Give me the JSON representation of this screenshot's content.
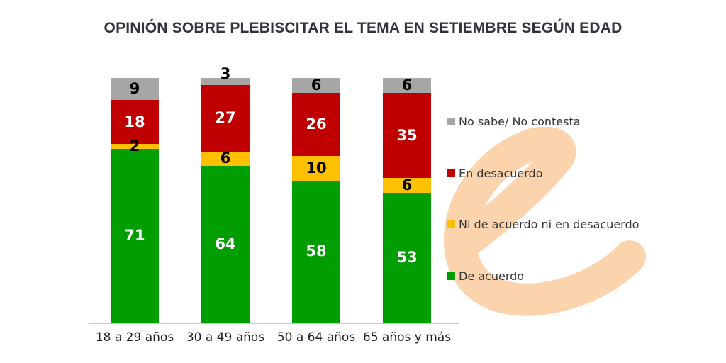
{
  "title": "OPINIÓN SOBRE PLEBISCITAR EL TEMA EN SETIEMBRE SEGÚN EDAD",
  "watermark": {
    "glyph": "e",
    "color": "#FBD3AC"
  },
  "colors": {
    "background": "#FFFFFF",
    "title_text": "#32323C",
    "axis_line": "#C9C9C9",
    "axis_label_text": "#1F1F1F",
    "legend_text": "#333333"
  },
  "chart_data": {
    "type": "bar",
    "stacked": true,
    "title": "OPINIÓN SOBRE PLEBISCITAR EL TEMA EN SETIEMBRE SEGÚN EDAD",
    "categories": [
      "18 a 29 años",
      "30 a 49 años",
      "50 a 64 años",
      "65 años y más"
    ],
    "series": [
      {
        "name": "De acuerdo",
        "color": "#009E00",
        "label_color": "#FFFFFF",
        "values": [
          71,
          64,
          58,
          53
        ]
      },
      {
        "name": "Ni de acuerdo ni en desacuerdo",
        "color": "#FFC000",
        "label_color": "#000000",
        "values": [
          2,
          6,
          10,
          6
        ]
      },
      {
        "name": "En desacuerdo",
        "color": "#C00000",
        "label_color": "#FFFFFF",
        "values": [
          18,
          27,
          26,
          35
        ]
      },
      {
        "name": "No sabe/ No contesta",
        "color": "#A6A6A6",
        "label_color": "#000000",
        "values": [
          9,
          3,
          6,
          6
        ]
      }
    ],
    "ylim": [
      0,
      100
    ],
    "grid": false,
    "value_labels": true,
    "legend_position": "right",
    "legend_order_top_to_bottom": [
      "No sabe/ No contesta",
      "En desacuerdo",
      "Ni de acuerdo ni en desacuerdo",
      "De acuerdo"
    ]
  }
}
